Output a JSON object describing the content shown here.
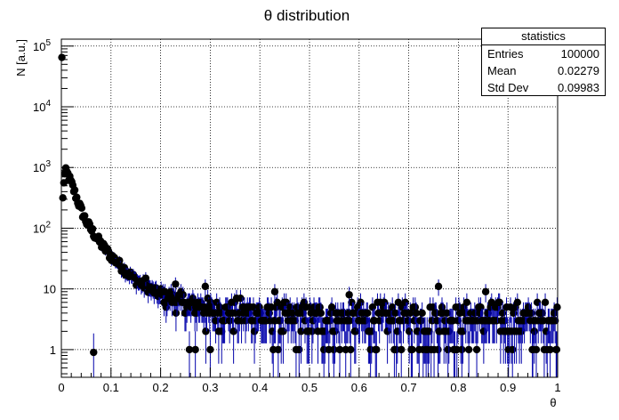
{
  "chart_data": {
    "type": "scatter",
    "title": "θ distribution",
    "xlabel": "θ",
    "ylabel": "N [a.u.]",
    "xlim": [
      0,
      1
    ],
    "ylim": [
      0.35,
      130000
    ],
    "yscale": "log",
    "grid": true,
    "x_ticks": [
      "0",
      "0.1",
      "0.2",
      "0.3",
      "0.4",
      "0.5",
      "0.6",
      "0.7",
      "0.8",
      "0.9",
      "1"
    ],
    "y_ticks": [
      {
        "value": 1,
        "base": "1",
        "exp": ""
      },
      {
        "value": 10,
        "base": "10",
        "exp": ""
      },
      {
        "value": 100,
        "base": "10",
        "exp": "2"
      },
      {
        "value": 1000,
        "base": "10",
        "exp": "3"
      },
      {
        "value": 10000,
        "base": "10",
        "exp": "4"
      },
      {
        "value": 100000,
        "base": "10",
        "exp": "5"
      }
    ],
    "marker_color": "#000000",
    "error_bar_color": "#0000aa",
    "first_bin": {
      "x": 0.001,
      "y": 65000
    },
    "profile": [
      {
        "x": 0.003,
        "y": 300
      },
      {
        "x": 0.005,
        "y": 600
      },
      {
        "x": 0.008,
        "y": 850
      },
      {
        "x": 0.012,
        "y": 800
      },
      {
        "x": 0.02,
        "y": 550
      },
      {
        "x": 0.03,
        "y": 330
      },
      {
        "x": 0.04,
        "y": 200
      },
      {
        "x": 0.05,
        "y": 130
      },
      {
        "x": 0.06,
        "y": 95
      },
      {
        "x": 0.08,
        "y": 55
      },
      {
        "x": 0.1,
        "y": 35
      },
      {
        "x": 0.12,
        "y": 24
      },
      {
        "x": 0.15,
        "y": 14
      },
      {
        "x": 0.2,
        "y": 8
      },
      {
        "x": 0.25,
        "y": 5.5
      },
      {
        "x": 0.3,
        "y": 4.3
      },
      {
        "x": 0.35,
        "y": 3.8
      },
      {
        "x": 0.4,
        "y": 3.5
      },
      {
        "x": 0.5,
        "y": 3.2
      },
      {
        "x": 0.7,
        "y": 3.0
      },
      {
        "x": 1.0,
        "y": 3.0
      }
    ],
    "n_bins": 500,
    "points": [
      {
        "x": 0.258,
        "y": 1
      },
      {
        "x": 0.27,
        "y": 1
      },
      {
        "x": 0.3,
        "y": 1
      },
      {
        "x": 0.95,
        "y": 1
      },
      {
        "x": 0.998,
        "y": 1
      },
      {
        "x": 0.17,
        "y": 15
      },
      {
        "x": 0.23,
        "y": 12
      },
      {
        "x": 0.29,
        "y": 11
      },
      {
        "x": 0.43,
        "y": 9
      },
      {
        "x": 0.58,
        "y": 8
      },
      {
        "x": 0.76,
        "y": 11
      },
      {
        "x": 0.855,
        "y": 9
      },
      {
        "x": 0.065,
        "y": 0.9
      }
    ]
  },
  "stats": {
    "title": "statistics",
    "rows": [
      {
        "label": "Entries",
        "value": "100000"
      },
      {
        "label": "Mean",
        "value": "0.02279"
      },
      {
        "label": "Std Dev",
        "value": "0.09983"
      }
    ]
  }
}
